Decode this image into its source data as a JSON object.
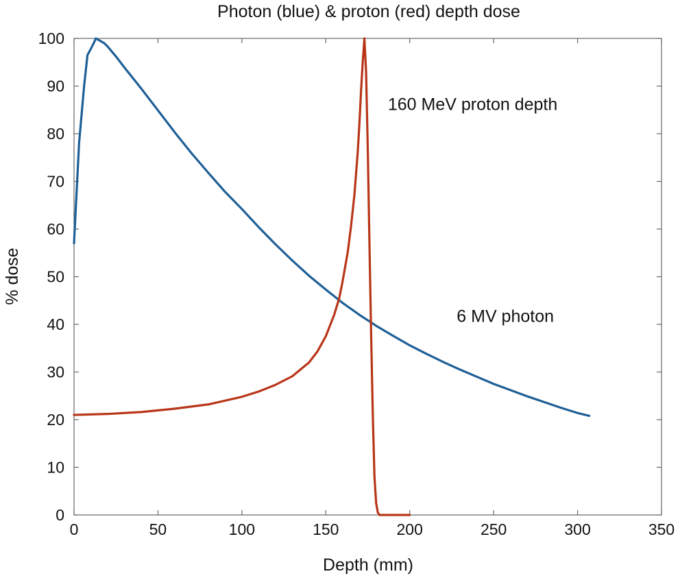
{
  "chart_data": {
    "type": "line",
    "title": "Photon (blue) & proton (red) depth dose",
    "xlabel": "Depth (mm)",
    "ylabel": "% dose",
    "xlim": [
      0,
      350
    ],
    "ylim": [
      0,
      100
    ],
    "xticks": [
      0,
      50,
      100,
      150,
      200,
      250,
      300,
      350
    ],
    "yticks": [
      0,
      10,
      20,
      30,
      40,
      50,
      60,
      70,
      80,
      90,
      100
    ],
    "grid": false,
    "series": [
      {
        "color": "#1d5f96",
        "x": [
          0,
          3,
          6,
          8,
          10,
          12,
          13,
          15,
          18,
          20,
          25,
          30,
          40,
          50,
          60,
          70,
          80,
          90,
          100,
          110,
          120,
          130,
          140,
          150,
          160,
          170,
          180,
          190,
          200,
          210,
          220,
          230,
          240,
          250,
          260,
          270,
          280,
          290,
          300,
          307
        ],
        "y": [
          57,
          78,
          90,
          96.5,
          97.8,
          99.2,
          100,
          99.6,
          99,
          98.3,
          96.2,
          93.9,
          89.5,
          84.9,
          80.3,
          75.9,
          71.8,
          67.8,
          64.2,
          60.4,
          56.8,
          53.4,
          50.2,
          47.3,
          44.5,
          42,
          39.7,
          37.6,
          35.6,
          33.8,
          32.1,
          30.5,
          29,
          27.5,
          26.2,
          24.9,
          23.7,
          22.5,
          21.4,
          20.8
        ]
      },
      {
        "color": "#b83518",
        "x": [
          0,
          20,
          40,
          60,
          80,
          100,
          110,
          120,
          130,
          140,
          145,
          150,
          155,
          158,
          160,
          163,
          165,
          167,
          169,
          170,
          171,
          172,
          173,
          174,
          175,
          176,
          177,
          178,
          179,
          180,
          181,
          182,
          185,
          190,
          200
        ],
        "y": [
          21,
          21.2,
          21.6,
          22.3,
          23.2,
          24.8,
          25.9,
          27.3,
          29.1,
          32,
          34.3,
          37.5,
          42,
          45.5,
          49,
          55,
          60.5,
          67,
          76,
          82,
          89,
          95,
          100,
          93,
          77,
          57,
          38,
          21,
          8,
          2.5,
          0.5,
          0,
          0,
          0,
          0
        ]
      }
    ],
    "annotations": [
      {
        "text": "160 MeV proton depth",
        "x": 187,
        "y": 85
      },
      {
        "text": "6 MV photon",
        "x": 228,
        "y": 40.5
      }
    ]
  }
}
